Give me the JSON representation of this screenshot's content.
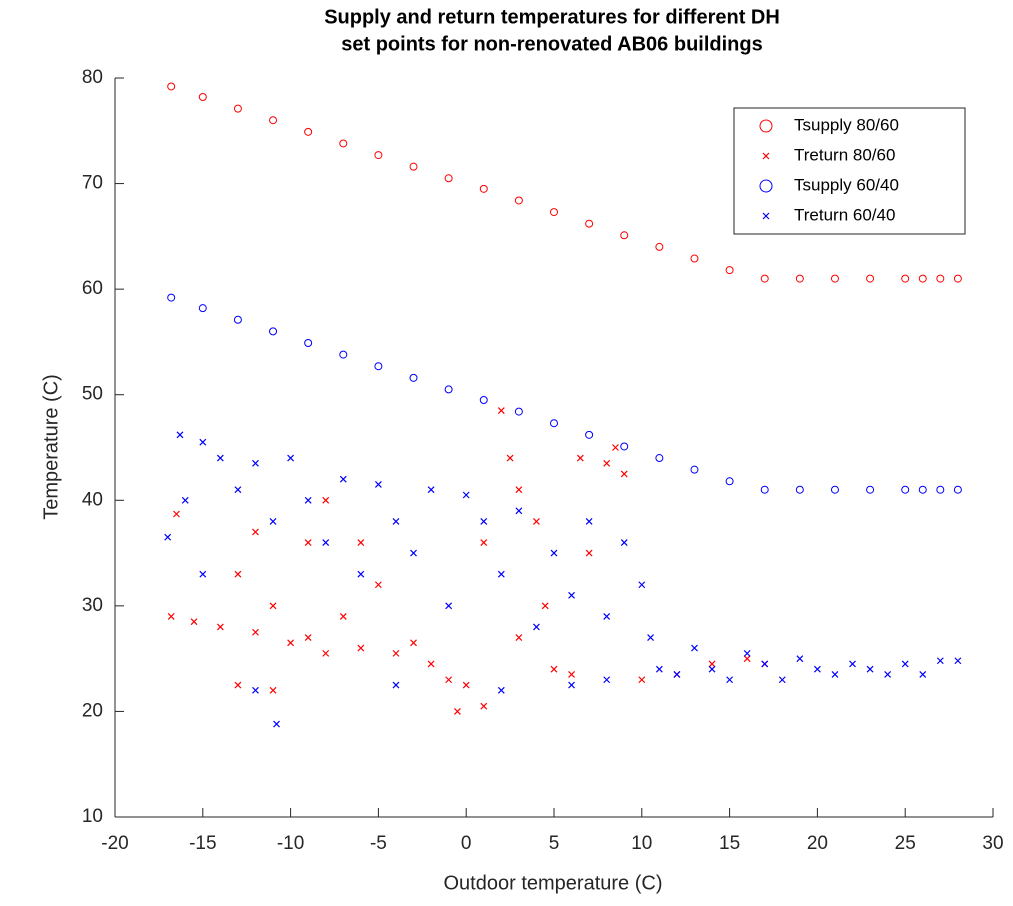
{
  "chart_data": {
    "type": "scatter",
    "title": [
      "Supply and return temperatures for different DH",
      "set points for non-renovated AB06 buildings"
    ],
    "x_label": "Outdoor temperature (C)",
    "y_label": "Temperature (C)",
    "xlim": [
      -20,
      30
    ],
    "xticks": [
      -20,
      -15,
      -10,
      -5,
      0,
      5,
      10,
      15,
      20,
      25,
      30
    ],
    "ylim": [
      10,
      80
    ],
    "yticks": [
      10,
      20,
      30,
      40,
      50,
      60,
      70,
      80
    ],
    "legend": "upper right",
    "series": [
      {
        "name": "Tsupply 80/60",
        "color": "#ff0000",
        "marker": "o",
        "x": [
          -16.8,
          -15,
          -13,
          -11,
          -9,
          -7,
          -5,
          -3,
          -1,
          1,
          3,
          5,
          7,
          9,
          11,
          13,
          15,
          17,
          19,
          21,
          23,
          25,
          26,
          27,
          28
        ],
        "values": [
          79.2,
          78.2,
          77.1,
          76.0,
          74.9,
          73.8,
          72.7,
          71.6,
          70.5,
          69.5,
          68.4,
          67.3,
          66.2,
          65.1,
          64.0,
          62.9,
          61.8,
          61,
          61,
          61,
          61,
          61,
          61,
          61,
          61
        ]
      },
      {
        "name": "Treturn 80/60",
        "color": "#ff0000",
        "marker": "x",
        "x": [
          -16.5,
          -16.8,
          -15.5,
          -14,
          -13,
          -12,
          -12,
          -11,
          -10,
          -9,
          -9,
          -8,
          -7,
          -6,
          -5,
          -4,
          -3,
          -2,
          -1,
          0,
          1,
          2,
          2.5,
          3,
          4,
          4.5,
          5,
          6,
          6.5,
          7,
          8,
          8.5,
          9,
          10,
          12,
          14,
          16,
          17,
          -0.5,
          -13,
          -11,
          -6,
          -8,
          1,
          3
        ],
        "values": [
          38.7,
          29,
          28.5,
          28,
          33,
          37,
          27.5,
          30,
          26.5,
          36,
          27,
          25.5,
          29,
          26,
          32,
          25.5,
          26.5,
          24.5,
          23,
          22.5,
          20.5,
          48.5,
          44,
          41,
          38,
          30,
          24,
          23.5,
          44,
          35,
          43.5,
          45,
          42.5,
          23,
          23.5,
          24.5,
          25,
          24.5,
          20,
          22.5,
          22,
          36,
          40,
          36,
          27
        ]
      },
      {
        "name": "Tsupply 60/40",
        "color": "#0000ff",
        "marker": "o",
        "x": [
          -16.8,
          -15,
          -13,
          -11,
          -9,
          -7,
          -5,
          -3,
          -1,
          1,
          3,
          5,
          7,
          9,
          11,
          13,
          15,
          17,
          19,
          21,
          23,
          25,
          26,
          27,
          28
        ],
        "values": [
          59.2,
          58.2,
          57.1,
          56.0,
          54.9,
          53.8,
          52.7,
          51.6,
          50.5,
          49.5,
          48.4,
          47.3,
          46.2,
          45.1,
          44.0,
          42.9,
          41.8,
          41,
          41,
          41,
          41,
          41,
          41,
          41,
          41
        ]
      },
      {
        "name": "Treturn 60/40",
        "color": "#0000ff",
        "marker": "x",
        "x": [
          -16.3,
          -17,
          -16,
          -15,
          -14,
          -13,
          -12,
          -11,
          -10,
          -9,
          -8,
          -7,
          -6,
          -5,
          -4,
          -3,
          -2,
          -1,
          0,
          1,
          2,
          3,
          4,
          5,
          6,
          7,
          8,
          9,
          10,
          10.5,
          11,
          12,
          13,
          14,
          15,
          16,
          17,
          18,
          19,
          20,
          21,
          22,
          23,
          24,
          25,
          26,
          27,
          28,
          -10.8,
          -15,
          -12,
          -4,
          2,
          6,
          8
        ],
        "values": [
          46.2,
          36.5,
          40,
          45.5,
          44,
          41,
          43.5,
          38,
          44,
          40,
          36,
          42,
          33,
          41.5,
          38,
          35,
          41,
          30,
          40.5,
          38,
          33,
          39,
          28,
          35,
          31,
          38,
          29,
          36,
          32,
          27,
          24,
          23.5,
          26,
          24,
          23,
          25.5,
          24.5,
          23,
          25,
          24,
          23.5,
          24.5,
          24,
          23.5,
          24.5,
          23.5,
          24.8,
          24.8,
          18.8,
          33,
          22,
          22.5,
          22,
          22.5,
          23
        ]
      }
    ]
  }
}
